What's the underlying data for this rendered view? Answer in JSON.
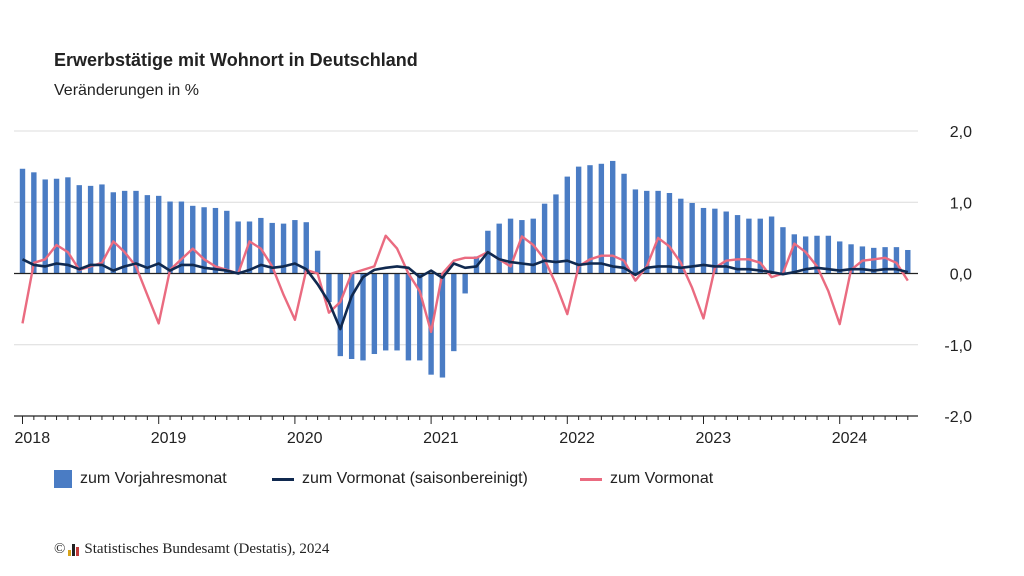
{
  "title": "Erwerbstätige mit Wohnort in Deutschland",
  "subtitle": "Veränderungen in %",
  "footer": {
    "copyright_symbol": "©",
    "text": "Statistisches Bundesamt (Destatis), 2024"
  },
  "colors": {
    "bars": "#4a7cc4",
    "line_sa": "#10294f",
    "line_mom": "#ea6b80",
    "grid": "#dcdcdc",
    "axis": "#222222"
  },
  "chart_data": {
    "type": "bar",
    "x_ticks": [
      "2018",
      "2019",
      "2020",
      "2021",
      "2022",
      "2023",
      "2024"
    ],
    "x_start": "2018-01",
    "y_ticks": [
      "2,0",
      "1,0",
      "0,0",
      "-1,0",
      "-2,0"
    ],
    "y_tick_values": [
      2,
      1,
      0,
      -1,
      -2
    ],
    "ylim": [
      -2,
      2
    ],
    "grid": true,
    "legend_position": "bottom",
    "series": [
      {
        "name": "zum Vorjahresmonat",
        "type": "bar",
        "values": [
          1.47,
          1.42,
          1.32,
          1.33,
          1.35,
          1.24,
          1.23,
          1.25,
          1.14,
          1.16,
          1.16,
          1.1,
          1.09,
          1.01,
          1.01,
          0.95,
          0.93,
          0.92,
          0.88,
          0.73,
          0.73,
          0.78,
          0.71,
          0.7,
          0.75,
          0.72,
          0.32,
          -0.4,
          -1.16,
          -1.2,
          -1.22,
          -1.13,
          -1.08,
          -1.08,
          -1.22,
          -1.22,
          -1.42,
          -1.46,
          -1.09,
          -0.28,
          0.24,
          0.6,
          0.7,
          0.77,
          0.75,
          0.77,
          0.98,
          1.11,
          1.36,
          1.5,
          1.52,
          1.54,
          1.58,
          1.4,
          1.18,
          1.16,
          1.16,
          1.13,
          1.05,
          0.99,
          0.92,
          0.91,
          0.87,
          0.82,
          0.77,
          0.77,
          0.8,
          0.65,
          0.55,
          0.52,
          0.53,
          0.53,
          0.45,
          0.41,
          0.38,
          0.36,
          0.37,
          0.37,
          0.33
        ]
      },
      {
        "name": "zum Vormonat (saisonbereinigt)",
        "type": "line",
        "values": [
          0.2,
          0.12,
          0.1,
          0.14,
          0.12,
          0.06,
          0.12,
          0.12,
          0.04,
          0.1,
          0.14,
          0.08,
          0.14,
          0.04,
          0.12,
          0.12,
          0.08,
          0.06,
          0.04,
          0.0,
          0.05,
          0.12,
          0.08,
          0.1,
          0.14,
          0.06,
          -0.15,
          -0.4,
          -0.78,
          -0.32,
          -0.05,
          0.05,
          0.08,
          0.1,
          0.08,
          -0.05,
          0.04,
          -0.06,
          0.14,
          0.08,
          0.1,
          0.3,
          0.2,
          0.16,
          0.14,
          0.12,
          0.18,
          0.16,
          0.18,
          0.12,
          0.14,
          0.14,
          0.1,
          0.08,
          -0.02,
          0.08,
          0.1,
          0.1,
          0.08,
          0.1,
          0.12,
          0.1,
          0.1,
          0.06,
          0.06,
          0.04,
          0.02,
          -0.01,
          0.02,
          0.06,
          0.08,
          0.06,
          0.04,
          0.06,
          0.06,
          0.04,
          0.06,
          0.06,
          0.02
        ]
      },
      {
        "name": "zum Vormonat",
        "type": "line",
        "values": [
          -0.7,
          0.15,
          0.2,
          0.4,
          0.3,
          0.05,
          0.1,
          0.15,
          0.45,
          0.3,
          0.1,
          -0.3,
          -0.7,
          0.05,
          0.2,
          0.35,
          0.2,
          0.1,
          0.05,
          0.0,
          0.45,
          0.35,
          0.1,
          -0.3,
          -0.65,
          0.05,
          0.0,
          -0.55,
          -0.4,
          0.0,
          0.05,
          0.1,
          0.53,
          0.35,
          0.0,
          -0.25,
          -0.82,
          0.0,
          0.18,
          0.22,
          0.22,
          0.3,
          0.2,
          0.1,
          0.52,
          0.4,
          0.2,
          -0.15,
          -0.57,
          0.1,
          0.2,
          0.25,
          0.25,
          0.18,
          -0.1,
          0.1,
          0.5,
          0.38,
          0.15,
          -0.2,
          -0.63,
          0.08,
          0.18,
          0.2,
          0.2,
          0.15,
          -0.05,
          0.0,
          0.42,
          0.3,
          0.1,
          -0.25,
          -0.71,
          0.05,
          0.18,
          0.2,
          0.22,
          0.15,
          -0.1
        ]
      }
    ]
  }
}
